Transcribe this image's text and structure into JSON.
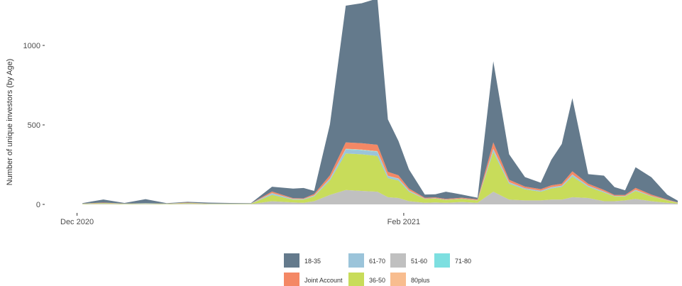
{
  "chart_data": {
    "type": "area",
    "stacked": true,
    "ylabel": "Number of unique investors (by Age)",
    "xlabel": "",
    "ylim": [
      0,
      1250
    ],
    "yticks": [
      0,
      500,
      1000
    ],
    "ytick_labels": [
      "0",
      "500",
      "1000"
    ],
    "xlim": [
      "2020-11-25",
      "2021-03-25"
    ],
    "xticks": [
      {
        "date": "2020-12-01",
        "label": "Dec 2020"
      },
      {
        "date": "2021-02-01",
        "label": "Feb 2021"
      }
    ],
    "grid": false,
    "legend_position": "bottom",
    "legend_order": [
      "18-35",
      "61-70",
      "51-60",
      "71-80",
      "Joint Account",
      "36-50",
      "80plus"
    ],
    "x": [
      "2020-12-02",
      "2020-12-06",
      "2020-12-10",
      "2020-12-14",
      "2020-12-18",
      "2020-12-22",
      "2020-12-26",
      "2020-12-30",
      "2021-01-03",
      "2021-01-07",
      "2021-01-11",
      "2021-01-13",
      "2021-01-15",
      "2021-01-18",
      "2021-01-21",
      "2021-01-24",
      "2021-01-27",
      "2021-01-29",
      "2021-01-31",
      "2021-02-02",
      "2021-02-05",
      "2021-02-07",
      "2021-02-09",
      "2021-02-12",
      "2021-02-15",
      "2021-02-18",
      "2021-02-21",
      "2021-02-24",
      "2021-02-27",
      "2021-03-01",
      "2021-03-03",
      "2021-03-05",
      "2021-03-08",
      "2021-03-11",
      "2021-03-13",
      "2021-03-15",
      "2021-03-17",
      "2021-03-20",
      "2021-03-23",
      "2021-03-25"
    ],
    "series": [
      {
        "name": "51-60",
        "color": "#c0c0c0",
        "values": [
          2,
          4,
          2,
          3,
          2,
          4,
          2,
          2,
          2,
          20,
          12,
          10,
          20,
          60,
          90,
          85,
          80,
          45,
          40,
          20,
          10,
          12,
          10,
          15,
          10,
          80,
          30,
          25,
          25,
          30,
          30,
          45,
          40,
          20,
          20,
          25,
          35,
          20,
          10,
          5
        ]
      },
      {
        "name": "36-50",
        "color": "#c8dc5a",
        "values": [
          2,
          4,
          2,
          3,
          2,
          4,
          2,
          2,
          2,
          40,
          18,
          20,
          30,
          90,
          230,
          230,
          225,
          120,
          110,
          60,
          25,
          25,
          18,
          20,
          15,
          250,
          100,
          70,
          55,
          70,
          80,
          130,
          70,
          55,
          30,
          25,
          50,
          30,
          15,
          5
        ]
      },
      {
        "name": "61-70",
        "color": "#9bc4da",
        "values": [
          1,
          1,
          1,
          1,
          1,
          1,
          1,
          1,
          1,
          8,
          3,
          3,
          5,
          10,
          25,
          25,
          25,
          12,
          10,
          6,
          2,
          2,
          2,
          2,
          2,
          15,
          8,
          6,
          5,
          6,
          6,
          10,
          6,
          5,
          3,
          3,
          5,
          3,
          2,
          1
        ]
      },
      {
        "name": "71-80",
        "color": "#7ddfe0",
        "values": [
          0,
          0,
          0,
          0,
          0,
          0,
          0,
          0,
          0,
          2,
          1,
          1,
          1,
          2,
          3,
          3,
          3,
          2,
          2,
          1,
          0,
          0,
          0,
          0,
          0,
          3,
          1,
          1,
          1,
          1,
          1,
          2,
          1,
          1,
          0,
          0,
          1,
          0,
          0,
          0
        ]
      },
      {
        "name": "80plus",
        "color": "#f8bd8f",
        "values": [
          0,
          0,
          0,
          0,
          0,
          0,
          0,
          0,
          0,
          1,
          1,
          0,
          1,
          1,
          2,
          2,
          2,
          1,
          1,
          1,
          0,
          0,
          0,
          0,
          0,
          2,
          1,
          0,
          0,
          1,
          1,
          1,
          1,
          0,
          0,
          0,
          1,
          0,
          0,
          0
        ]
      },
      {
        "name": "Joint Account",
        "color": "#f48865",
        "values": [
          1,
          2,
          1,
          1,
          1,
          2,
          1,
          1,
          1,
          10,
          4,
          4,
          8,
          20,
          40,
          40,
          40,
          25,
          20,
          12,
          5,
          5,
          5,
          5,
          5,
          40,
          15,
          10,
          10,
          12,
          12,
          20,
          12,
          10,
          6,
          6,
          12,
          8,
          4,
          2
        ]
      },
      {
        "name": "18-35",
        "color": "#647a8c",
        "values": [
          2,
          20,
          3,
          25,
          2,
          5,
          5,
          3,
          2,
          30,
          60,
          65,
          20,
          320,
          860,
          880,
          920,
          330,
          215,
          120,
          20,
          20,
          45,
          20,
          10,
          510,
          160,
          60,
          40,
          160,
          250,
          460,
          60,
          90,
          50,
          30,
          130,
          110,
          30,
          10
        ]
      }
    ]
  }
}
